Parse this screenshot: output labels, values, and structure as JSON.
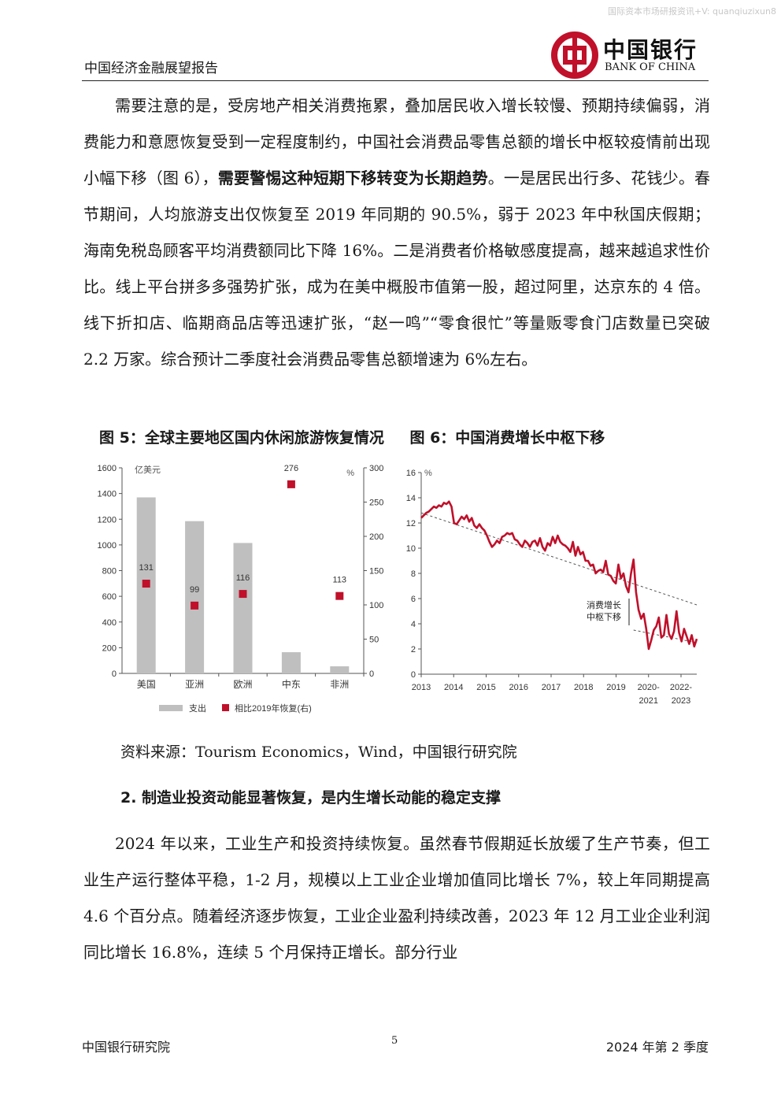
{
  "watermark": "国际资本市场研报资讯+V: quanqiuzixun8",
  "header": {
    "title": "中国经济金融展望报告",
    "logo_cn": "中国银行",
    "logo_en": "BANK OF CHINA"
  },
  "paragraph1": {
    "part1": "需要注意的是，受房地产相关消费拖累，叠加居民收入增长较慢、预期持续偏弱，消费能力和意愿恢复受到一定程度制约，中国社会消费品零售总额的增长中枢较疫情前出现小幅下移（图 6），",
    "bold": "需要警惕这种短期下移转变为长期趋势",
    "part2": "。一是居民出行多、花钱少。春节期间，人均旅游支出仅恢复至 2019 年同期的 90.5%，弱于 2023 年中秋国庆假期；海南免税岛顾客平均消费额同比下降 16%。二是消费者价格敏感度提高，越来越追求性价比。线上平台拼多多强势扩张，成为在美中概股市值第一股，超过阿里，达京东的 4 倍。线下折扣店、临期商品店等迅速扩张，“赵一鸣”“零食很忙”等量贩零食门店数量已突破 2.2 万家。综合预计二季度社会消费品零售总额增速为 6%左右。"
  },
  "figures": {
    "fig5_title": "图 5：全球主要地区国内休闲旅游恢复情况",
    "fig6_title": "图 6：中国消费增长中枢下移"
  },
  "chart_data": [
    {
      "type": "bar",
      "categories": [
        "美国",
        "亚洲",
        "欧洲",
        "中东",
        "非洲"
      ],
      "series": [
        {
          "name": "支出",
          "axis": "left",
          "values": [
            1370,
            1185,
            1015,
            165,
            55
          ],
          "color": "#bfbfbf"
        },
        {
          "name": "相比2019年恢复(右)",
          "axis": "right",
          "values": [
            131,
            99,
            116,
            276,
            113
          ],
          "color": "#c0102a"
        }
      ],
      "left_unit": "亿美元",
      "right_unit": "%",
      "ylim_left": [
        0,
        1600
      ],
      "ylim_right": [
        0,
        300
      ],
      "left_ticks": [
        0,
        200,
        400,
        600,
        800,
        1000,
        1200,
        1400,
        1600
      ],
      "right_ticks": [
        0,
        50,
        100,
        150,
        200,
        250,
        300
      ],
      "legend": "bottom"
    },
    {
      "type": "line",
      "unit": "%",
      "ylim": [
        0,
        16
      ],
      "y_ticks": [
        0,
        2,
        4,
        6,
        8,
        10,
        12,
        14,
        16
      ],
      "x_ticks": [
        "2013",
        "2014",
        "2015",
        "2016",
        "2017",
        "2018",
        "2019",
        "2020-\n2021",
        "2022-\n2023"
      ],
      "annotation": [
        "消费增长",
        "中枢下移"
      ],
      "series": [
        {
          "name": "社会消费品零售总额增速",
          "color": "#c0102a",
          "values": [
            12.4,
            12.6,
            12.8,
            12.9,
            13.1,
            13.3,
            13.2,
            13.4,
            13.3,
            13.6,
            13.5,
            13.7,
            13.3,
            12.0,
            11.9,
            12.2,
            12.5,
            12.3,
            12.6,
            12.1,
            12.4,
            11.8,
            11.6,
            11.9,
            11.6,
            11.4,
            11.0,
            10.5,
            10.1,
            10.3,
            10.6,
            10.4,
            10.9,
            11.0,
            11.2,
            11.1,
            11.2,
            10.7,
            10.6,
            10.3,
            10.1,
            10.6,
            10.4,
            10.1,
            10.5,
            10.6,
            10.2,
            10.8,
            10.1,
            9.8,
            10.4,
            10.2,
            10.9,
            10.4,
            11.0,
            10.5,
            10.3,
            10.2,
            10.0,
            9.7,
            10.5,
            9.4,
            10.1,
            9.5,
            9.7,
            9.0,
            9.0,
            8.6,
            8.7,
            8.0,
            8.2,
            8.3,
            8.1,
            9.0,
            7.9,
            7.8,
            7.4,
            7.2,
            8.7,
            7.6,
            8.0,
            7.0,
            6.5,
            8.0,
            9.1,
            6.5,
            5.1,
            4.4,
            4.8,
            3.6,
            2.0,
            2.7,
            3.5,
            3.8,
            4.5,
            2.9,
            3.1,
            4.7,
            3.2,
            2.8,
            3.4,
            5.0,
            3.3,
            2.6,
            3.6,
            3.0,
            2.4,
            3.1,
            2.2,
            2.8
          ]
        }
      ],
      "trend_lines": [
        {
          "from": [
            0,
            12.8
          ],
          "to": [
            109,
            5.5
          ],
          "style": "dashed"
        },
        {
          "from": [
            84,
            3.5
          ],
          "to": [
            109,
            2.5
          ],
          "style": "dashed"
        }
      ]
    }
  ],
  "source": "资料来源：Tourism Economics，Wind，中国银行研究院",
  "section_heading": "2. 制造业投资动能显著恢复，是内生增长动能的稳定支撑",
  "paragraph2": "2024 年以来，工业生产和投资持续恢复。虽然春节假期延长放缓了生产节奏，但工业生产运行整体平稳，1-2 月，规模以上工业企业增加值同比增长 7%，较上年同期提高 4.6 个百分点。随着经济逐步恢复，工业企业盈利持续改善，2023 年 12 月工业企业利润同比增长 16.8%，连续 5 个月保持正增长。部分行业",
  "footer": {
    "left": "中国银行研究院",
    "page": "5",
    "right": "2024 年第 2 季度"
  }
}
